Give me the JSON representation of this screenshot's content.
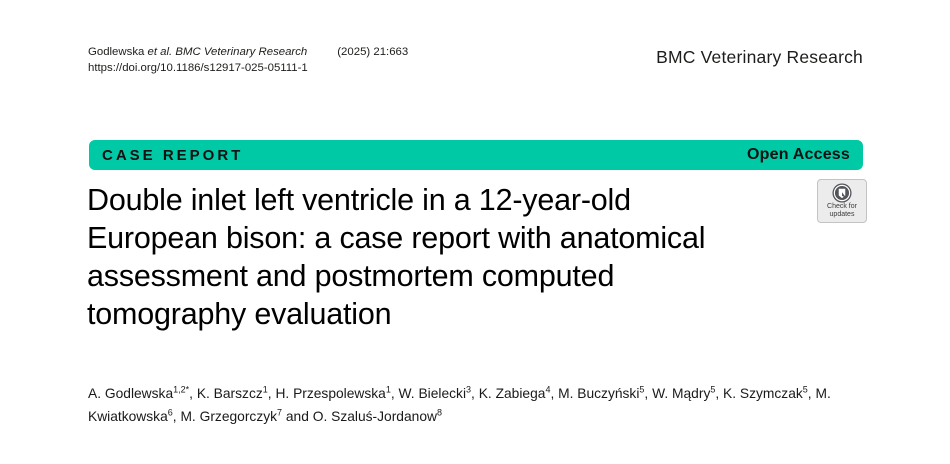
{
  "header": {
    "citation_authors": "Godlewska ",
    "citation_etal": "et al. BMC Veterinary Research",
    "citation_issue": "(2025) 21:663",
    "doi": "https://doi.org/10.1186/s12917-025-05111-1",
    "journal_name": "BMC Veterinary Research"
  },
  "banner": {
    "type_label": "CASE REPORT",
    "access_label": "Open Access",
    "color": "#00c9a6"
  },
  "title": {
    "full": "Double inlet left ventricle in a 12-year-old European bison: a case report with anatomical assessment and postmortem computed tomography evaluation",
    "lines": [
      "Double inlet left ventricle in a 12-year-old",
      "European bison: a case report with anatomical",
      "assessment and postmortem computed",
      "tomography evaluation"
    ]
  },
  "updates_badge": {
    "icon": "crossmark-icon",
    "line1": "Check for",
    "line2": "updates"
  },
  "authors": {
    "list": [
      {
        "pre": "",
        "name": "A. Godlewska",
        "sup": "1,2*"
      },
      {
        "pre": ", ",
        "name": "K. Barszcz",
        "sup": "1"
      },
      {
        "pre": ", ",
        "name": "H. Przespolewska",
        "sup": "1"
      },
      {
        "pre": ", ",
        "name": "W. Bielecki",
        "sup": "3"
      },
      {
        "pre": ", ",
        "name": "K. Zabiega",
        "sup": "4"
      },
      {
        "pre": ", ",
        "name": "M. Buczyński",
        "sup": "5"
      },
      {
        "pre": ", ",
        "name": "W. Mądry",
        "sup": "5"
      },
      {
        "pre": ", ",
        "name": "K. Szymczak",
        "sup": "5"
      },
      {
        "pre": ", ",
        "name": "M. Kwiatkowska",
        "sup": "6"
      },
      {
        "pre": ", ",
        "name": "M. Grzegorczyk",
        "sup": "7"
      },
      {
        "pre": " and ",
        "name": "O. Szaluś-Jordanow",
        "sup": "8"
      }
    ]
  }
}
